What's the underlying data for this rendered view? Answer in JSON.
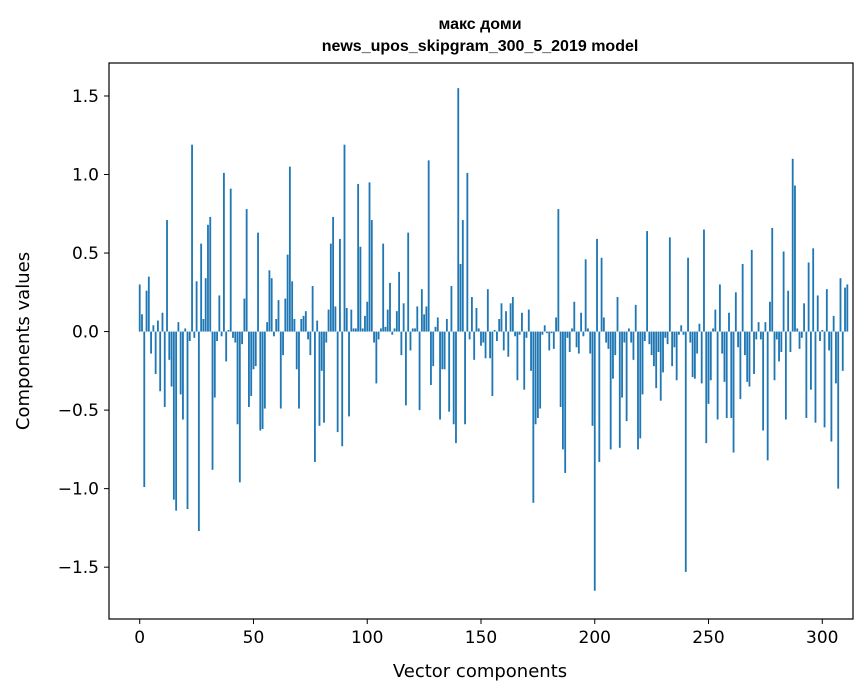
{
  "chart_data": {
    "type": "bar",
    "title": "макс доми",
    "subtitle": "news_upos_skipgram_300_5_2019 model",
    "xlabel": "Vector components",
    "ylabel": "Components values",
    "xlim": [
      -13.5,
      313.5
    ],
    "ylim": [
      -1.83,
      1.71
    ],
    "x_ticks": [
      0,
      50,
      100,
      150,
      200,
      250,
      300
    ],
    "y_ticks": [
      -1.5,
      -1.0,
      -0.5,
      0.0,
      0.5,
      1.0,
      1.5
    ],
    "y_tick_labels": [
      "−1.5",
      "−1.0",
      "−0.5",
      "0.0",
      "0.5",
      "1.0",
      "1.5"
    ],
    "bar_color": "#1f77b4",
    "grid": false,
    "values": [
      0.3,
      0.11,
      -0.99,
      0.26,
      0.35,
      -0.14,
      0.04,
      -0.27,
      0.07,
      -0.38,
      0.12,
      -0.48,
      0.71,
      -0.18,
      -0.35,
      -1.07,
      -1.14,
      0.06,
      -0.4,
      -0.56,
      0.02,
      -1.13,
      -0.06,
      1.19,
      -0.04,
      0.32,
      -1.27,
      0.56,
      0.08,
      0.34,
      0.68,
      0.73,
      -0.88,
      -0.42,
      -0.06,
      0.23,
      -0.03,
      1.01,
      -0.19,
      0.01,
      0.91,
      -0.04,
      -0.07,
      -0.59,
      -0.96,
      -0.08,
      0.21,
      0.78,
      -0.48,
      -0.41,
      -0.24,
      -0.22,
      0.63,
      -0.63,
      -0.62,
      -0.49,
      0.06,
      0.39,
      0.34,
      -0.03,
      0.08,
      0.2,
      -0.49,
      -0.15,
      0.21,
      0.49,
      1.05,
      0.32,
      0.08,
      -0.24,
      -0.49,
      0.08,
      0.1,
      0.13,
      -0.05,
      -0.15,
      0.29,
      -0.83,
      0.07,
      -0.6,
      -0.25,
      -0.58,
      -0.07,
      0.14,
      0.56,
      0.73,
      0.16,
      -0.64,
      0.59,
      -0.73,
      1.19,
      0.15,
      -0.54,
      0.14,
      0.02,
      0.02,
      0.94,
      0.54,
      0.02,
      0.1,
      0.19,
      0.95,
      0.71,
      -0.07,
      -0.33,
      -0.05,
      0.02,
      0.56,
      0.03,
      0.14,
      0.31,
      -0.02,
      0.02,
      0.13,
      0.38,
      -0.15,
      0.18,
      -0.47,
      0.63,
      -0.12,
      0.02,
      0.02,
      0.16,
      -0.5,
      0.27,
      0.11,
      0.16,
      1.09,
      -0.34,
      -0.22,
      0.03,
      0.09,
      -0.56,
      -0.24,
      -0.24,
      0.08,
      -0.51,
      0.29,
      -0.59,
      -0.71,
      1.55,
      0.43,
      0.71,
      -0.59,
      1.01,
      -0.05,
      0.22,
      -0.18,
      0.15,
      0.02,
      -0.09,
      -0.07,
      -0.17,
      0.27,
      -0.17,
      -0.41,
      0.01,
      -0.06,
      0.08,
      0.18,
      -0.12,
      0.13,
      -0.16,
      0.18,
      0.22,
      -0.03,
      -0.31,
      -0.02,
      0.12,
      -0.37,
      -0.04,
      0.14,
      -0.25,
      -1.09,
      -0.59,
      -0.55,
      -0.49,
      -0.02,
      0.04,
      -0.01,
      -0.12,
      -0.01,
      -0.11,
      0.09,
      0.78,
      -0.48,
      -0.75,
      -0.9,
      -0.04,
      -0.13,
      0.02,
      0.19,
      -0.1,
      -0.14,
      0.12,
      -0.03,
      0.46,
      0.02,
      -0.14,
      -0.6,
      -1.65,
      0.59,
      -0.83,
      0.47,
      0.09,
      -0.07,
      -0.11,
      -0.75,
      -0.3,
      -0.15,
      0.22,
      -0.74,
      -0.42,
      -0.07,
      -0.57,
      0.02,
      -0.07,
      -0.18,
      0.17,
      -0.75,
      -0.68,
      -0.4,
      -0.06,
      0.64,
      -0.08,
      -0.15,
      -0.22,
      -0.36,
      -0.13,
      -0.44,
      -0.26,
      -0.04,
      -0.08,
      0.6,
      -0.22,
      -0.1,
      -0.31,
      -0.02,
      0.04,
      -0.02,
      -1.53,
      0.47,
      -0.07,
      -0.29,
      -0.3,
      -0.14,
      0.05,
      -0.33,
      0.65,
      -0.71,
      -0.46,
      -0.31,
      0.02,
      0.14,
      -0.56,
      0.3,
      -0.14,
      -0.32,
      -0.55,
      0.12,
      -0.55,
      -0.77,
      0.25,
      -0.1,
      -0.43,
      0.43,
      -0.15,
      -0.32,
      -0.35,
      0.52,
      -0.27,
      -0.05,
      0.06,
      -0.05,
      -0.63,
      0.06,
      -0.82,
      0.19,
      0.66,
      -0.31,
      -0.05,
      -0.19,
      -0.13,
      0.51,
      -0.56,
      0.26,
      -0.13,
      1.1,
      0.93,
      0.02,
      -0.11,
      -0.04,
      0.18,
      -0.55,
      0.44,
      -0.37,
      0.53,
      -0.58,
      0.23,
      -0.06,
      0.01,
      -0.61,
      0.27,
      -0.12,
      -0.7,
      0.1,
      -0.33,
      -1.0,
      0.34,
      -0.25,
      0.28,
      0.3
    ]
  }
}
